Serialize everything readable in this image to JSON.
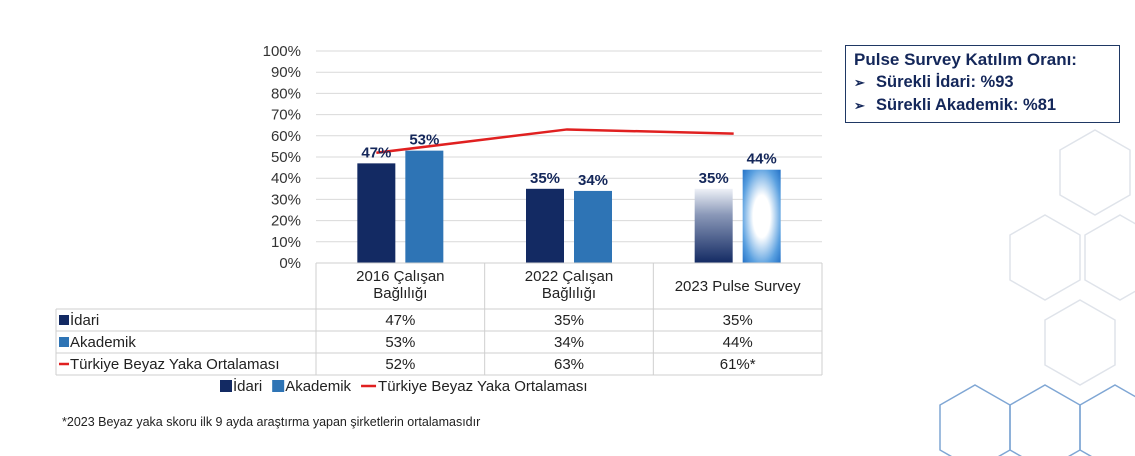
{
  "chart_data": {
    "type": "bar",
    "categories": [
      "2016 Çalışan Bağlılığı",
      "2022 Çalışan Bağlılığı",
      "2023 Pulse Survey"
    ],
    "category_lines": [
      [
        "2016 Çalışan",
        "Bağlılığı"
      ],
      [
        "2022 Çalışan",
        "Bağlılığı"
      ],
      [
        "2023 Pulse Survey"
      ]
    ],
    "series": [
      {
        "name": "İdari",
        "type": "bar",
        "values": [
          47,
          35,
          35
        ],
        "labels": [
          "47%",
          "35%",
          "35%"
        ],
        "color": "#132a63"
      },
      {
        "name": "Akademik",
        "type": "bar",
        "values": [
          53,
          34,
          44
        ],
        "labels": [
          "53%",
          "34%",
          "44%"
        ],
        "color": "#2e74b5"
      },
      {
        "name": "Türkiye Beyaz Yaka Ortalaması",
        "type": "line",
        "values": [
          52,
          63,
          61
        ],
        "color": "#e02020"
      }
    ],
    "y_ticks": [
      "0%",
      "10%",
      "20%",
      "30%",
      "40%",
      "50%",
      "60%",
      "70%",
      "80%",
      "90%",
      "100%"
    ],
    "ylim": [
      0,
      100
    ],
    "grid": true,
    "legend_position": "bottom",
    "table": {
      "rows": [
        {
          "name": "İdari",
          "cells": [
            "47%",
            "35%",
            "35%"
          ]
        },
        {
          "name": "Akademik",
          "cells": [
            "53%",
            "34%",
            "44%"
          ]
        },
        {
          "name": "Türkiye Beyaz Yaka Ortalaması",
          "cells": [
            "52%",
            "63%",
            "61%*"
          ]
        }
      ]
    }
  },
  "info_box": {
    "title": "Pulse Survey Katılım Oranı:",
    "items": [
      "Sürekli İdari: %93",
      "Sürekli Akademik: %81"
    ]
  },
  "footnote": "*2023 Beyaz yaka skoru ilk 9 ayda araştırma yapan şirketlerin ortalamasıdır",
  "colors": {
    "idari": "#132a63",
    "akademik": "#2e74b5",
    "line": "#e02020",
    "border": "#1f3864"
  }
}
